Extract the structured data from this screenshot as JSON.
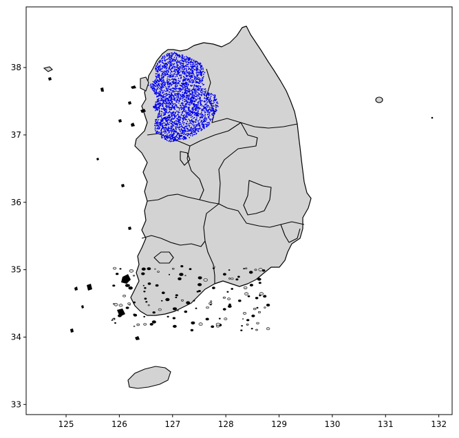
{
  "chart_data": {
    "type": "map",
    "title": "",
    "xlabel": "",
    "ylabel": "",
    "xlim": [
      124.25,
      132.25
    ],
    "ylim": [
      32.85,
      38.9
    ],
    "x_ticks": [
      "125",
      "126",
      "127",
      "128",
      "129",
      "130",
      "131",
      "132"
    ],
    "y_ticks": [
      "33",
      "34",
      "35",
      "36",
      "37",
      "38"
    ],
    "base_map": "South Korea provincial boundaries",
    "land_color": "#d3d3d3",
    "border_color": "#000000",
    "highlight_points": {
      "color": "#0000ee",
      "region": "Seoul / Incheon / Gyeonggi",
      "count": 2600
    }
  }
}
